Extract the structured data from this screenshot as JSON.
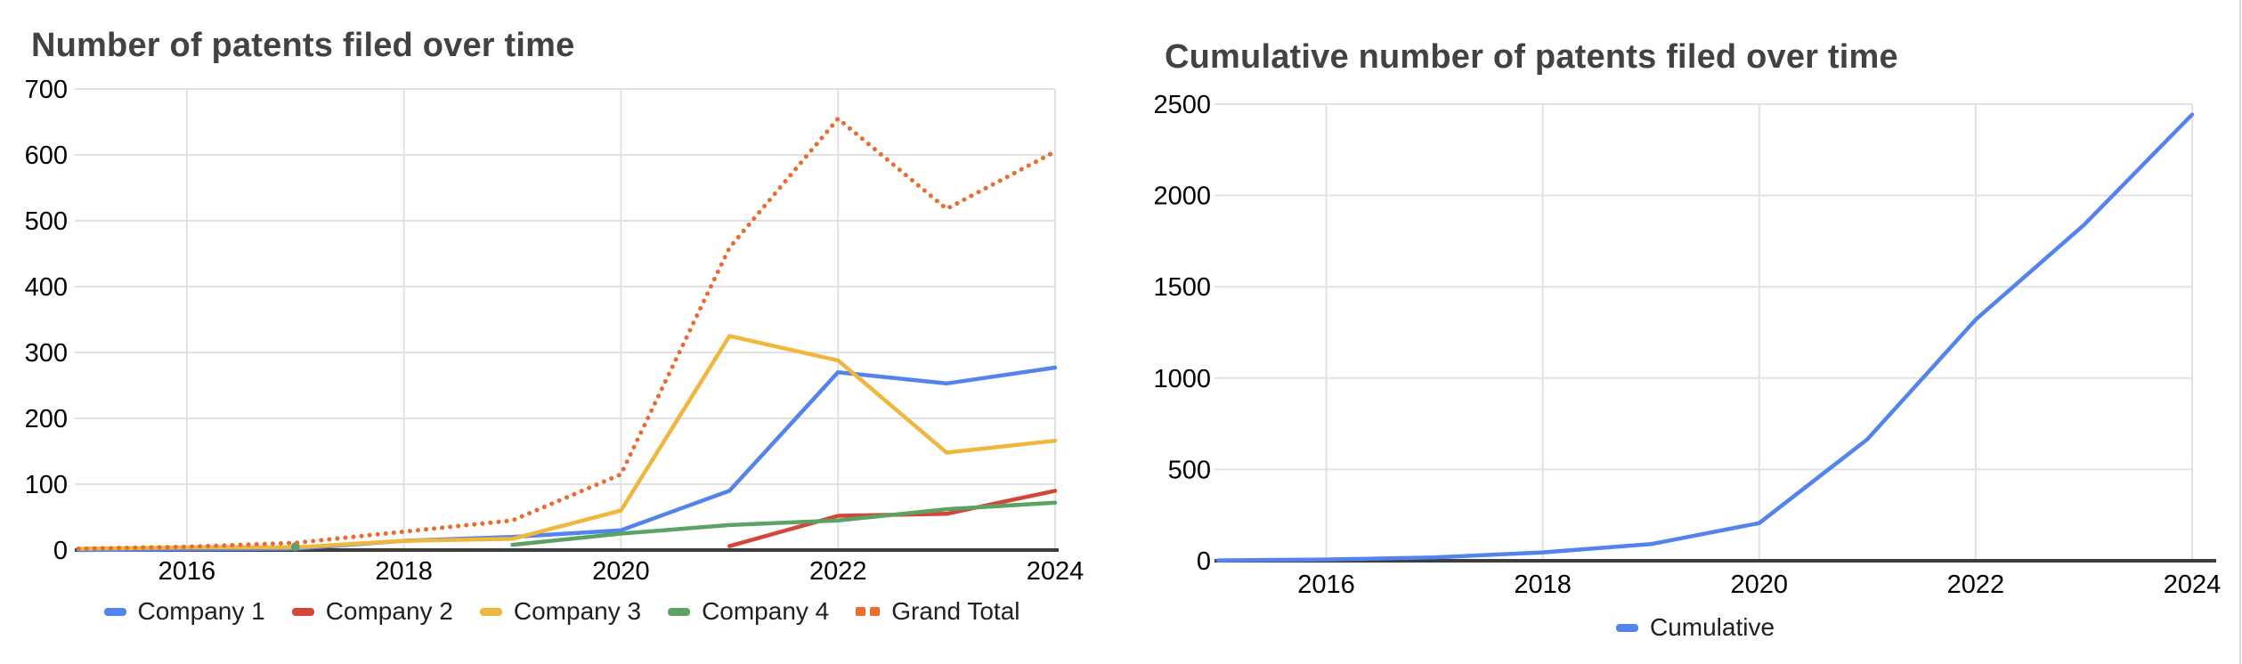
{
  "page": {
    "background": "#ffffff",
    "gridline_color": "#e2e2e2",
    "axis_color": "#3d3d3d",
    "title_color": "#424242",
    "right_border_color": "#d9d9d9"
  },
  "chart_data": [
    {
      "type": "line",
      "title": "Number of patents filed over time",
      "x": [
        2015,
        2016,
        2017,
        2018,
        2019,
        2020,
        2021,
        2022,
        2023,
        2024
      ],
      "x_tick_years": [
        2016,
        2018,
        2020,
        2022,
        2024
      ],
      "x_tick_labels": [
        "2016",
        "2018",
        "2020",
        "2022",
        "2024"
      ],
      "y_ticks": [
        0,
        100,
        200,
        300,
        400,
        500,
        600,
        700
      ],
      "ylim": [
        0,
        700
      ],
      "xlabel": "",
      "ylabel": "",
      "grid": true,
      "legend_position": "bottom",
      "series": [
        {
          "name": "Company 1",
          "color": "#5383ec",
          "style": "solid",
          "values": [
            0,
            1,
            2,
            14,
            20,
            30,
            90,
            270,
            253,
            277
          ]
        },
        {
          "name": "Company 2",
          "color": "#d6453a",
          "style": "solid",
          "values": [
            null,
            null,
            null,
            null,
            null,
            null,
            6,
            52,
            55,
            90
          ]
        },
        {
          "name": "Company 3",
          "color": "#f0b73e",
          "style": "solid",
          "values": [
            2,
            4,
            4,
            14,
            17,
            60,
            325,
            288,
            148,
            166
          ]
        },
        {
          "name": "Company 4",
          "color": "#5ba263",
          "style": "solid",
          "values": [
            null,
            null,
            5,
            null,
            8,
            25,
            38,
            45,
            62,
            72
          ]
        },
        {
          "name": "Grand Total",
          "color": "#e96c30",
          "style": "dotted",
          "values": [
            2,
            5,
            11,
            28,
            45,
            115,
            459,
            655,
            518,
            605
          ]
        }
      ]
    },
    {
      "type": "line",
      "title": "Cumulative number of patents filed over time",
      "x": [
        2015,
        2016,
        2017,
        2018,
        2019,
        2020,
        2021,
        2022,
        2023,
        2024
      ],
      "x_tick_years": [
        2016,
        2018,
        2020,
        2022,
        2024
      ],
      "x_tick_labels": [
        "2016",
        "2018",
        "2020",
        "2022",
        "2024"
      ],
      "y_ticks": [
        0,
        500,
        1000,
        1500,
        2000,
        2500
      ],
      "ylim": [
        0,
        2500
      ],
      "xlabel": "",
      "ylabel": "",
      "grid": true,
      "legend_position": "bottom",
      "series": [
        {
          "name": "Cumulative",
          "color": "#5383ec",
          "style": "solid",
          "values": [
            2,
            7,
            18,
            46,
            91,
            206,
            665,
            1320,
            1838,
            2443
          ]
        }
      ]
    }
  ]
}
